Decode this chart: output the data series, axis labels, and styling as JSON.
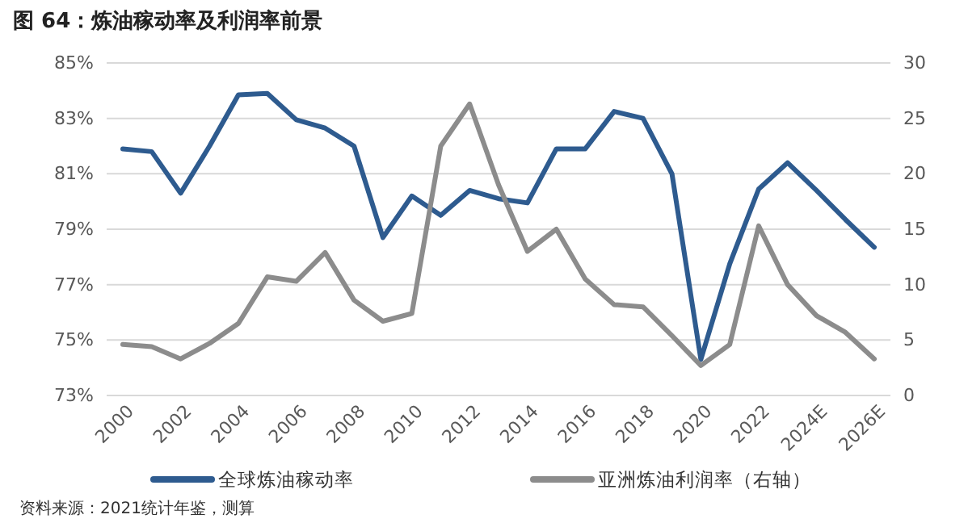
{
  "chart_data": {
    "type": "line",
    "title": "图 64：炼油稼动率及利润率前景",
    "categories": [
      "2000",
      null,
      "2002",
      null,
      "2004",
      null,
      "2006",
      null,
      "2008",
      null,
      "2010",
      null,
      "2012",
      null,
      "2014",
      null,
      "2016",
      null,
      "2018",
      null,
      "2020",
      null,
      "2022",
      null,
      "2024E",
      null,
      "2026E"
    ],
    "series": [
      {
        "name": "全球炼油稼动率",
        "color": "#2e5b8f",
        "values": [
          81.9,
          81.8,
          80.3,
          82.0,
          83.85,
          83.9,
          82.95,
          82.65,
          82.0,
          78.7,
          80.2,
          79.5,
          80.4,
          80.1,
          79.95,
          81.9,
          81.9,
          83.25,
          83.0,
          81.0,
          74.3,
          77.75,
          80.45,
          81.4,
          80.4,
          79.35,
          78.35
        ]
      },
      {
        "name": "亚洲炼油利润率（右轴）",
        "color": "#8c8c8c",
        "axis": "y2",
        "values": [
          4.6,
          4.4,
          3.3,
          4.7,
          6.5,
          10.7,
          10.3,
          12.9,
          8.6,
          6.7,
          7.4,
          22.5,
          26.3,
          19,
          13.0,
          15.0,
          10.5,
          8.2,
          8.0,
          5.4,
          2.7,
          4.6,
          15.3,
          10.0,
          7.2,
          5.7,
          3.3
        ]
      }
    ],
    "ylim": [
      73,
      85
    ],
    "yticks": [
      {
        "value": 73,
        "label": "73%"
      },
      {
        "value": 75,
        "label": "75%"
      },
      {
        "value": 77,
        "label": "77%"
      },
      {
        "value": 79,
        "label": "79%"
      },
      {
        "value": 81,
        "label": "81%"
      },
      {
        "value": 83,
        "label": "83%"
      },
      {
        "value": 85,
        "label": "85%"
      }
    ],
    "y2lim": [
      0,
      30
    ],
    "y2ticks": [
      0,
      5,
      10,
      15,
      20,
      25,
      30
    ],
    "grid": "y",
    "legend": "bottom",
    "marker": "none",
    "line_style": "solid",
    "annotations": [
      "资料来源：2021统计年鉴，测算"
    ]
  }
}
